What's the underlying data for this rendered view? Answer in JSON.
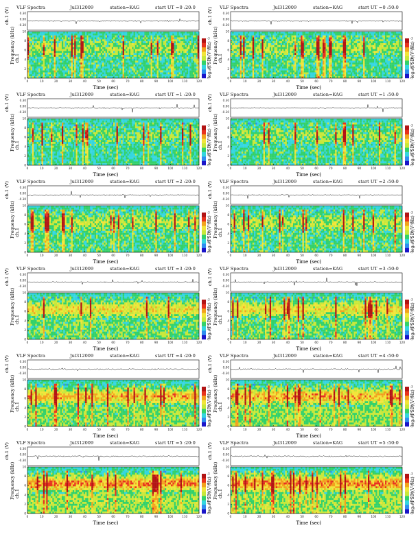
{
  "figure": {
    "kind": "VLF spectrogram grid",
    "colormap": [
      "#1a14c8",
      "#2f8ef0",
      "#34d6e0",
      "#33d16a",
      "#c8e83a",
      "#f2e53a",
      "#f2a21e",
      "#e8321e",
      "#b21414"
    ]
  },
  "common": {
    "title": "VLF Spectra",
    "date": "Jul312009",
    "station": "station=KAG",
    "ch_label": "ch.1 (V)",
    "ylabel": "Frequency (kHz)",
    "ylabel_ch": "ch.1",
    "xlabel": "Time (sec)",
    "cb_label": "log₁₀(PSD)(V²/Hz)",
    "ch_ticks": [
      "0.30",
      "0.00",
      "-0.30"
    ]
  },
  "chart_data": [
    {
      "type": "heatmap",
      "title": "VLF Spectra",
      "date": "Jul312009",
      "station": "station=KAG",
      "start_ut": "start UT =0 :20:0",
      "xlabel": "Time (sec)",
      "ylabel": "Frequency (kHz)",
      "xlim": [
        0,
        120
      ],
      "ylim": [
        0,
        10
      ],
      "xticks": [
        "0",
        "10",
        "20",
        "30",
        "40",
        "50",
        "60",
        "70",
        "80",
        "90",
        "100",
        "110",
        "120"
      ],
      "yticks": [
        "0",
        "2",
        "4",
        "6",
        "8",
        "10"
      ],
      "colorbar_ticks": [
        "-3",
        "-4",
        "-5",
        "-6",
        "-7"
      ],
      "intensity": 0.25
    },
    {
      "type": "heatmap",
      "title": "VLF Spectra",
      "date": "Jul312009",
      "station": "station=KAG",
      "start_ut": "start UT =0 :50:0",
      "xlabel": "Time (sec)",
      "ylabel": "Frequency (kHz)",
      "xlim": [
        0,
        120
      ],
      "ylim": [
        0,
        10
      ],
      "xticks": [
        "0",
        "10",
        "20",
        "30",
        "40",
        "50",
        "60",
        "70",
        "80",
        "90",
        "100",
        "110",
        "120"
      ],
      "yticks": [
        "0",
        "2",
        "4",
        "6",
        "8",
        "10"
      ],
      "colorbar_ticks": [
        "-3",
        "-4",
        "-5",
        "-6",
        "-7"
      ],
      "intensity": 0.25
    },
    {
      "type": "heatmap",
      "title": "VLF Spectra",
      "date": "Jul312009",
      "station": "station=KAG",
      "start_ut": "start UT =1 :20:0",
      "xlabel": "Time (sec)",
      "ylabel": "Frequency (kHz)",
      "xlim": [
        0,
        120
      ],
      "ylim": [
        0,
        10
      ],
      "xticks": [
        "0",
        "10",
        "20",
        "30",
        "40",
        "50",
        "60",
        "70",
        "80",
        "90",
        "100",
        "110",
        "120"
      ],
      "yticks": [
        "0",
        "2",
        "4",
        "6",
        "8",
        "10"
      ],
      "colorbar_ticks": [
        "-3",
        "-4",
        "-5",
        "-6",
        "-7"
      ],
      "intensity": 0.15
    },
    {
      "type": "heatmap",
      "title": "VLF Spectra",
      "date": "Jul312009",
      "station": "station=KAG",
      "start_ut": "start UT =1 :50:0",
      "xlabel": "Time (sec)",
      "ylabel": "Frequency (kHz)",
      "xlim": [
        0,
        120
      ],
      "ylim": [
        0,
        10
      ],
      "xticks": [
        "0",
        "10",
        "20",
        "30",
        "40",
        "50",
        "60",
        "70",
        "80",
        "90",
        "100",
        "110",
        "120"
      ],
      "yticks": [
        "0",
        "2",
        "4",
        "6",
        "8",
        "10"
      ],
      "colorbar_ticks": [
        "-3",
        "-4",
        "-5",
        "-6",
        "-7"
      ],
      "intensity": 0.2
    },
    {
      "type": "heatmap",
      "title": "VLF Spectra",
      "date": "Jul312009",
      "station": "station=KAG",
      "start_ut": "start UT =2 :20:0",
      "xlabel": "Time (sec)",
      "ylabel": "Frequency (kHz)",
      "xlim": [
        0,
        120
      ],
      "ylim": [
        0,
        10
      ],
      "xticks": [
        "0",
        "10",
        "20",
        "30",
        "40",
        "50",
        "60",
        "70",
        "80",
        "90",
        "100",
        "110",
        "120"
      ],
      "yticks": [
        "0",
        "2",
        "4",
        "6",
        "8",
        "10"
      ],
      "colorbar_ticks": [
        "-3",
        "-4",
        "-5",
        "-6",
        "-7"
      ],
      "intensity": 0.3
    },
    {
      "type": "heatmap",
      "title": "VLF Spectra",
      "date": "Jul312009",
      "station": "station=KAG",
      "start_ut": "start UT =2 :50:0",
      "xlabel": "Time (sec)",
      "ylabel": "Frequency (kHz)",
      "xlim": [
        0,
        120
      ],
      "ylim": [
        0,
        10
      ],
      "xticks": [
        "0",
        "10",
        "20",
        "30",
        "40",
        "50",
        "60",
        "70",
        "80",
        "90",
        "100",
        "110",
        "120"
      ],
      "yticks": [
        "0",
        "2",
        "4",
        "6",
        "8",
        "10"
      ],
      "colorbar_ticks": [
        "-3",
        "-4",
        "-5",
        "-6",
        "-7"
      ],
      "intensity": 0.3
    },
    {
      "type": "heatmap",
      "title": "VLF Spectra",
      "date": "Jul312009",
      "station": "station=KAG",
      "start_ut": "start UT =3 :20:0",
      "xlabel": "Time (sec)",
      "ylabel": "Frequency (kHz)",
      "xlim": [
        0,
        120
      ],
      "ylim": [
        0,
        10
      ],
      "xticks": [
        "0",
        "10",
        "20",
        "30",
        "40",
        "50",
        "60",
        "70",
        "80",
        "90",
        "100",
        "110",
        "120"
      ],
      "yticks": [
        "0",
        "2",
        "4",
        "6",
        "8",
        "10"
      ],
      "colorbar_ticks": [
        "-3",
        "-4",
        "-5",
        "-6",
        "-7"
      ],
      "intensity": 0.5
    },
    {
      "type": "heatmap",
      "title": "VLF Spectra",
      "date": "Jul312009",
      "station": "station=KAG",
      "start_ut": "start UT =3 :50:0",
      "xlabel": "Time (sec)",
      "ylabel": "Frequency (kHz)",
      "xlim": [
        0,
        120
      ],
      "ylim": [
        0,
        10
      ],
      "xticks": [
        "0",
        "10",
        "20",
        "30",
        "40",
        "50",
        "60",
        "70",
        "80",
        "90",
        "100",
        "110",
        "120"
      ],
      "yticks": [
        "0",
        "2",
        "4",
        "6",
        "8",
        "10"
      ],
      "colorbar_ticks": [
        "-3",
        "-4",
        "-5",
        "-6",
        "-7"
      ],
      "intensity": 0.5
    },
    {
      "type": "heatmap",
      "title": "VLF Spectra",
      "date": "Jul312009",
      "station": "station=KAG",
      "start_ut": "start UT =4 :20:0",
      "xlabel": "Time (sec)",
      "ylabel": "Frequency (kHz)",
      "xlim": [
        0,
        120
      ],
      "ylim": [
        0,
        10
      ],
      "xticks": [
        "0",
        "10",
        "20",
        "30",
        "40",
        "50",
        "60",
        "70",
        "80",
        "90",
        "100",
        "110",
        "120"
      ],
      "yticks": [
        "0",
        "2",
        "4",
        "6",
        "8",
        "10"
      ],
      "colorbar_ticks": [
        "-3",
        "-4",
        "-5",
        "-6",
        "-7"
      ],
      "intensity": 0.65
    },
    {
      "type": "heatmap",
      "title": "VLF Spectra",
      "date": "Jul312009",
      "station": "station=KAG",
      "start_ut": "start UT =4 :50:0",
      "xlabel": "Time (sec)",
      "ylabel": "Frequency (kHz)",
      "xlim": [
        0,
        120
      ],
      "ylim": [
        0,
        10
      ],
      "xticks": [
        "0",
        "10",
        "20",
        "30",
        "40",
        "50",
        "60",
        "70",
        "80",
        "90",
        "100",
        "110",
        "120"
      ],
      "yticks": [
        "0",
        "2",
        "4",
        "6",
        "8",
        "10"
      ],
      "colorbar_ticks": [
        "-3",
        "-4",
        "-5",
        "-6",
        "-7"
      ],
      "intensity": 0.7
    },
    {
      "type": "heatmap",
      "title": "VLF Spectra",
      "date": "Jul312009",
      "station": "station=KAG",
      "start_ut": "start UT =5 :20:0",
      "xlabel": "Time (sec)",
      "ylabel": "Frequency (kHz)",
      "xlim": [
        0,
        120
      ],
      "ylim": [
        0,
        10
      ],
      "xticks": [
        "0",
        "10",
        "20",
        "30",
        "40",
        "50",
        "60",
        "70",
        "80",
        "90",
        "100",
        "110",
        "120"
      ],
      "yticks": [
        "0",
        "2",
        "4",
        "6",
        "8",
        "10"
      ],
      "colorbar_ticks": [
        "-3",
        "-4",
        "-5",
        "-6",
        "-7"
      ],
      "intensity": 0.8
    },
    {
      "type": "heatmap",
      "title": "VLF Spectra",
      "date": "Jul312009",
      "station": "station=KAG",
      "start_ut": "start UT =5 :50:0",
      "xlabel": "Time (sec)",
      "ylabel": "Frequency (kHz)",
      "xlim": [
        0,
        120
      ],
      "ylim": [
        0,
        10
      ],
      "xticks": [
        "0",
        "10",
        "20",
        "30",
        "40",
        "50",
        "60",
        "70",
        "80",
        "90",
        "100",
        "110",
        "120"
      ],
      "yticks": [
        "0",
        "2",
        "4",
        "6",
        "8",
        "10"
      ],
      "colorbar_ticks": [
        "-3",
        "-4",
        "-5",
        "-6",
        "-7"
      ],
      "intensity": 0.8
    }
  ]
}
